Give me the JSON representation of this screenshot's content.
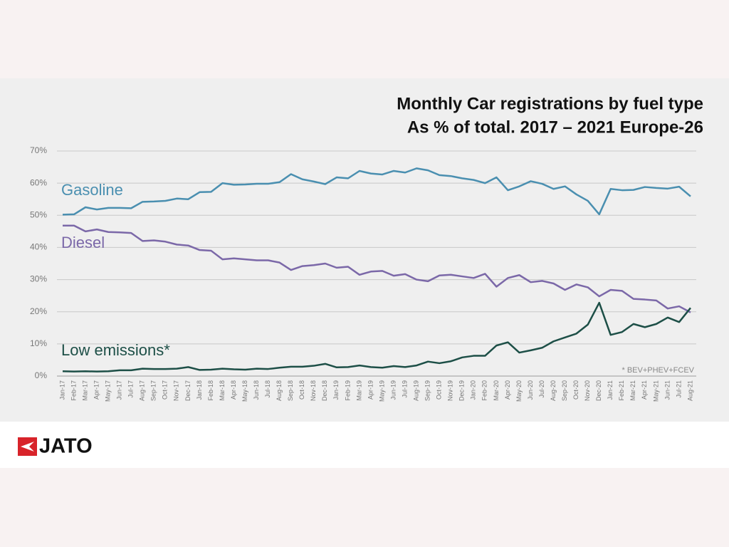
{
  "chart_data": {
    "type": "line",
    "title": "Monthly Car registrations by fuel type",
    "subtitle": "As % of total. 2017 – 2021 Europe-26",
    "annotation": "* BEV+PHEV+FCEV",
    "categories": [
      "Jan-17",
      "Feb-17",
      "Mar-17",
      "Apr-17",
      "May-17",
      "Jun-17",
      "Jul-17",
      "Aug-17",
      "Sep-17",
      "Oct-17",
      "Nov-17",
      "Dec-17",
      "Jan-18",
      "Feb-18",
      "Mar-18",
      "Apr-18",
      "May-18",
      "Jun-18",
      "Jul-18",
      "Aug-18",
      "Sep-18",
      "Oct-18",
      "Nov-18",
      "Dec-18",
      "Jan-19",
      "Feb-19",
      "Mar-19",
      "Apr-19",
      "May-19",
      "Jun-19",
      "Jul-19",
      "Aug-19",
      "Sep-19",
      "Oct-19",
      "Nov-19",
      "Dec-19",
      "Jan-20",
      "Feb-20",
      "Mar-20",
      "Apr-20",
      "May-20",
      "Jun-20",
      "Jul-20",
      "Aug-20",
      "Sep-20",
      "Oct-20",
      "Nov-20",
      "Dec-20",
      "Jan-21",
      "Feb-21",
      "Mar-21",
      "Apr-21",
      "May-21",
      "Jun-21",
      "Jul-21",
      "Aug-21"
    ],
    "series": [
      {
        "name": "Gasoline",
        "color": "#4a8fb0",
        "values": [
          50.2,
          50.3,
          52.5,
          51.8,
          52.3,
          52.3,
          52.2,
          54.2,
          54.3,
          54.5,
          55.2,
          55.0,
          57.2,
          57.3,
          60.0,
          59.5,
          59.6,
          59.8,
          59.8,
          60.3,
          62.8,
          61.2,
          60.5,
          59.7,
          61.8,
          61.5,
          63.8,
          63.0,
          62.7,
          63.8,
          63.3,
          64.6,
          64.0,
          62.5,
          62.2,
          61.5,
          61.0,
          60.0,
          61.8,
          57.8,
          59.0,
          60.6,
          59.8,
          58.2,
          59.0,
          56.5,
          54.5,
          50.3,
          58.2,
          57.8,
          57.9,
          58.8,
          58.5,
          58.3,
          58.9,
          55.9
        ]
      },
      {
        "name": "Diesel",
        "color": "#7b68a8",
        "values": [
          46.8,
          46.8,
          45.0,
          45.6,
          44.8,
          44.7,
          44.5,
          42.0,
          42.2,
          41.8,
          40.9,
          40.6,
          39.2,
          39.0,
          36.3,
          36.6,
          36.3,
          36.0,
          36.0,
          35.3,
          33.0,
          34.2,
          34.5,
          35.0,
          33.7,
          34.0,
          31.5,
          32.5,
          32.7,
          31.2,
          31.7,
          30.0,
          29.5,
          31.3,
          31.5,
          31.0,
          30.5,
          31.8,
          27.8,
          30.5,
          31.4,
          29.2,
          29.6,
          28.8,
          26.8,
          28.5,
          27.6,
          24.8,
          26.8,
          26.5,
          24.0,
          23.8,
          23.5,
          21.0,
          21.7,
          19.8
        ]
      },
      {
        "name": "Low emissions*",
        "color": "#1d4f47",
        "values": [
          1.5,
          1.4,
          1.5,
          1.4,
          1.5,
          1.8,
          1.8,
          2.3,
          2.2,
          2.2,
          2.3,
          2.8,
          1.9,
          2.0,
          2.3,
          2.1,
          2.0,
          2.3,
          2.2,
          2.6,
          2.9,
          2.9,
          3.2,
          3.8,
          2.7,
          2.8,
          3.3,
          2.8,
          2.6,
          3.1,
          2.8,
          3.3,
          4.5,
          4.0,
          4.6,
          5.8,
          6.3,
          6.3,
          9.5,
          10.5,
          7.3,
          8.0,
          8.8,
          10.8,
          12.0,
          13.2,
          16.0,
          22.8,
          12.8,
          13.7,
          16.2,
          15.2,
          16.2,
          18.2,
          16.8,
          21.2
        ]
      }
    ],
    "ylim": [
      0,
      70
    ],
    "yticks": [
      {
        "value": 0,
        "label": "0%"
      },
      {
        "value": 10,
        "label": "10%"
      },
      {
        "value": 20,
        "label": "20%"
      },
      {
        "value": 30,
        "label": "30%"
      },
      {
        "value": 40,
        "label": "40%"
      },
      {
        "value": 50,
        "label": "50%"
      },
      {
        "value": 60,
        "label": "60%"
      },
      {
        "value": 70,
        "label": "70%"
      }
    ],
    "grid": true
  },
  "logo": "JATO"
}
